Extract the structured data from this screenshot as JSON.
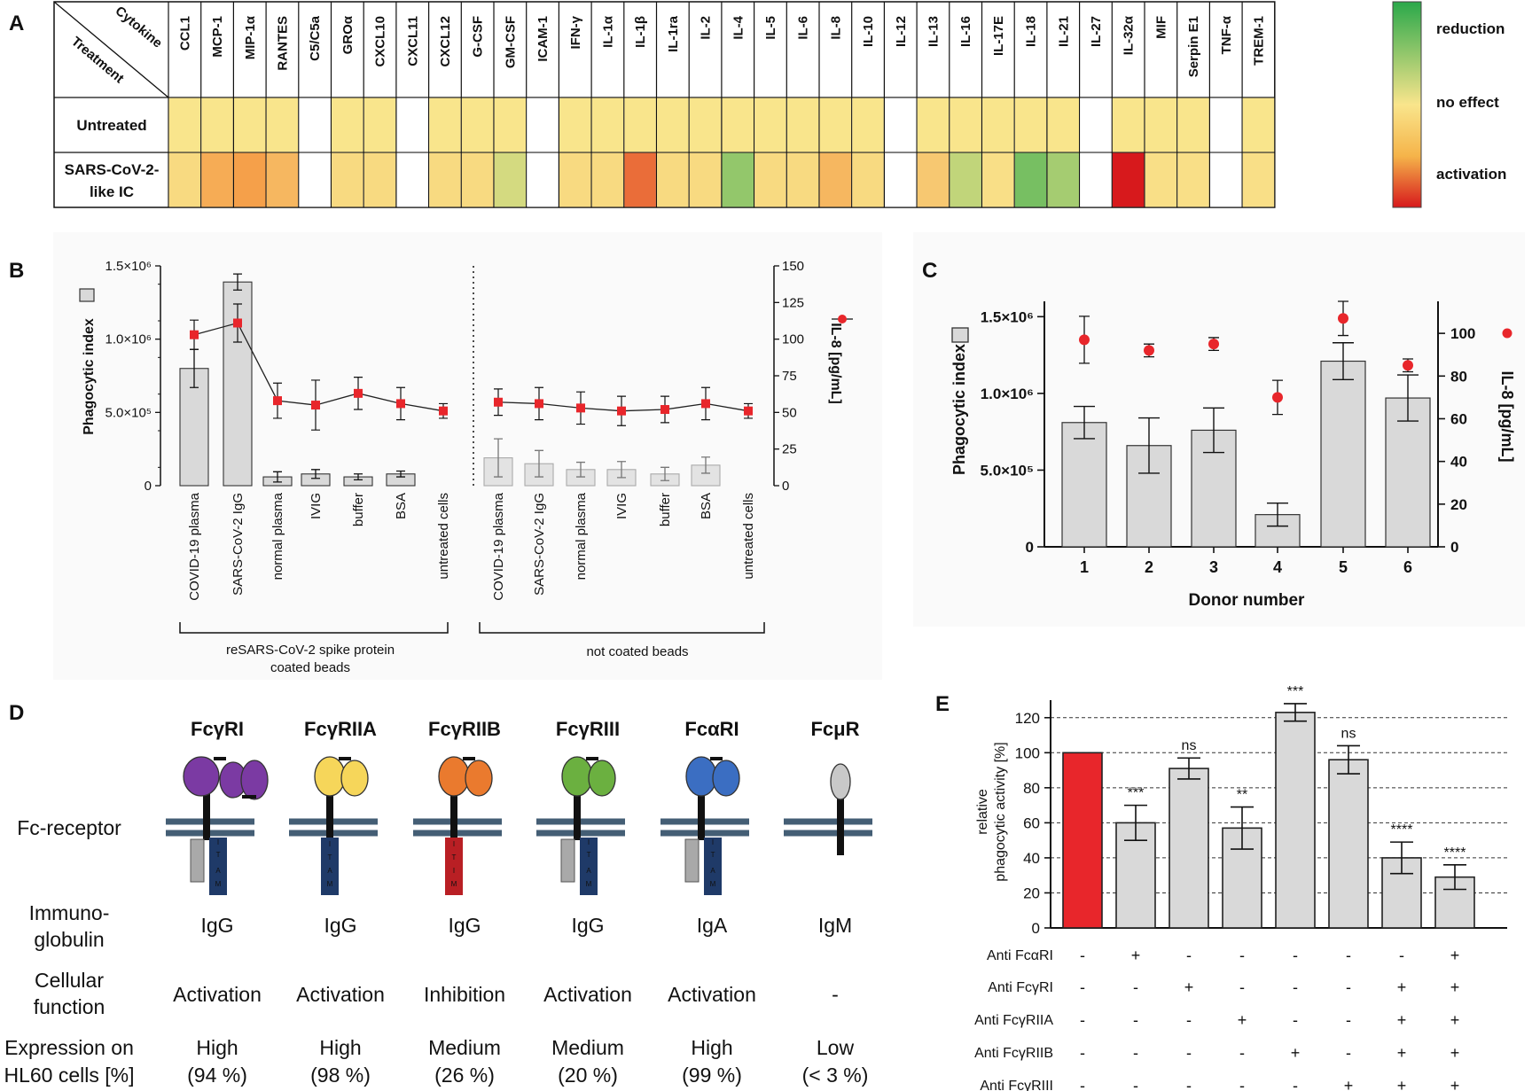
{
  "panel_labels": {
    "a": "A",
    "b": "B",
    "c": "C",
    "d": "D",
    "e": "E"
  },
  "chart_data": [
    {
      "panel": "A",
      "type": "heatmap",
      "header": {
        "col_header": "Cytokine",
        "row_header": "Treatment"
      },
      "columns": [
        "CCL1",
        "MCP-1",
        "MIP-1α",
        "RANTES",
        "C5/C5a",
        "GROα",
        "CXCL10",
        "CXCL11",
        "CXCL12",
        "G-CSF",
        "GM-CSF",
        "ICAM-1",
        "IFN-γ",
        "IL-1α",
        "IL-1β",
        "IL-1ra",
        "IL-2",
        "IL-4",
        "IL-5",
        "IL-6",
        "IL-8",
        "IL-10",
        "IL-12",
        "IL-13",
        "IL-16",
        "IL-17E",
        "IL-18",
        "IL-21",
        "IL-27",
        "IL-32α",
        "MIF",
        "Serpin E1",
        "TNF-α",
        "TREM-1"
      ],
      "rows": [
        {
          "label": "Untreated",
          "values": [
            0,
            0,
            0,
            0,
            null,
            0,
            0,
            null,
            0,
            0,
            0,
            null,
            0,
            0,
            0,
            0,
            0,
            0,
            0,
            0,
            0,
            0,
            null,
            0,
            0,
            0,
            0,
            0,
            null,
            0,
            0,
            0,
            null,
            0
          ]
        },
        {
          "label": "SARS-CoV-2-\nlike IC",
          "values": [
            0.1,
            0.5,
            0.6,
            0.4,
            null,
            0.1,
            0.1,
            null,
            0.1,
            0.1,
            -0.2,
            null,
            0.1,
            0.1,
            0.75,
            0.1,
            0.1,
            -0.55,
            0.1,
            0.1,
            0.4,
            0.1,
            null,
            0.25,
            -0.3,
            0.05,
            -0.7,
            -0.45,
            null,
            1,
            0.05,
            0.05,
            null,
            0.05
          ]
        }
      ],
      "scale": {
        "min": -1,
        "max": 1,
        "colors": [
          "#2aa84a",
          "#f9e58c",
          "#d7191c"
        ]
      },
      "legend": {
        "top": "reduction",
        "middle": "no effect",
        "bottom": "activation"
      }
    },
    {
      "panel": "B",
      "type": "bar",
      "categories": [
        "COVID-19 plasma",
        "SARS-CoV-2 IgG",
        "normal plasma",
        "IVIG",
        "buffer",
        "BSA",
        "untreated cells",
        "COVID-19 plasma",
        "SARS-CoV-2 IgG",
        "normal plasma",
        "IVIG",
        "buffer",
        "BSA",
        "untreated cells"
      ],
      "series": [
        {
          "name": "Phagocytic index",
          "axis": "left",
          "values": [
            800000,
            1390000,
            60000,
            80000,
            60000,
            80000,
            0,
            190000,
            150000,
            110000,
            110000,
            80000,
            140000,
            0
          ],
          "errors": [
            130000,
            55000,
            35000,
            30000,
            20000,
            20000,
            0,
            130000,
            90000,
            50000,
            55000,
            45000,
            55000,
            0
          ]
        },
        {
          "name": "IL-8 [pg/mL]",
          "axis": "right",
          "values": [
            103,
            111,
            58,
            55,
            63,
            56,
            51,
            57,
            56,
            53,
            51,
            52,
            56,
            51
          ],
          "errors": [
            10,
            13,
            12,
            17,
            11,
            11,
            5,
            9,
            11,
            11,
            10,
            9,
            11,
            5
          ]
        }
      ],
      "ylabel": "Phagocytic index",
      "ylabel_right": "IL-8 [pg/mL]",
      "ylim": [
        0,
        1500000
      ],
      "ylim_right": [
        0,
        150
      ],
      "yticks_left": [
        "0",
        "5.0×10⁵",
        "1.0×10⁶",
        "1.5×10⁶"
      ],
      "yticks_right": [
        "0",
        "25",
        "50",
        "75",
        "100",
        "125",
        "150"
      ],
      "groups": [
        {
          "label_line1": "reSARS-CoV-2 spike protein",
          "label_line2": "coated beads"
        },
        {
          "label_line1": "not coated beads",
          "label_line2": ""
        }
      ]
    },
    {
      "panel": "C",
      "type": "bar",
      "categories": [
        "1",
        "2",
        "3",
        "4",
        "5",
        "6"
      ],
      "series": [
        {
          "name": "Phagocytic index",
          "axis": "left",
          "values": [
            810000,
            660000,
            760000,
            210000,
            1210000,
            970000
          ],
          "errors": [
            105000,
            180000,
            145000,
            75000,
            120000,
            150000
          ]
        },
        {
          "name": "IL-8 [pg/mL]",
          "axis": "right",
          "values": [
            97,
            92,
            95,
            70,
            107,
            85
          ],
          "errors": [
            11,
            3,
            3,
            8,
            8,
            3
          ]
        }
      ],
      "xlabel": "Donor number",
      "ylabel": "Phagocytic index",
      "ylabel_right": "IL-8 [pg/mL]",
      "ylim": [
        0,
        1600000
      ],
      "ylim_right": [
        0,
        115
      ],
      "yticks_left": [
        "0",
        "5.0×10⁵",
        "1.0×10⁶",
        "1.5×10⁶"
      ],
      "yticks_right": [
        "0",
        "20",
        "40",
        "60",
        "80",
        "100"
      ]
    },
    {
      "panel": "E",
      "type": "bar",
      "categories": [
        "1",
        "2",
        "3",
        "4",
        "5",
        "6",
        "7",
        "8"
      ],
      "values": [
        100,
        60,
        91,
        57,
        123,
        96,
        40,
        29
      ],
      "errors": [
        0,
        10,
        6,
        12,
        5,
        8,
        9,
        7
      ],
      "significance": [
        "",
        "***",
        "ns",
        "**",
        "***",
        "ns",
        "****",
        "****"
      ],
      "colors": [
        "#e8262b",
        "#d9d9d9",
        "#d9d9d9",
        "#d9d9d9",
        "#d9d9d9",
        "#d9d9d9",
        "#d9d9d9",
        "#d9d9d9"
      ],
      "ylabel_line1": "relative",
      "ylabel_line2": "phagocytic activity [%]",
      "ylim": [
        0,
        130
      ],
      "yticks": [
        "0",
        "20",
        "40",
        "60",
        "80",
        "100",
        "120"
      ],
      "treatments": [
        {
          "label": "Anti FcαRI",
          "marks": [
            "-",
            "+",
            "-",
            "-",
            "-",
            "-",
            "-",
            "+"
          ]
        },
        {
          "label": "Anti FcγRI",
          "marks": [
            "-",
            "-",
            "+",
            "-",
            "-",
            "-",
            "+",
            "+"
          ]
        },
        {
          "label": "Anti FcγRIIA",
          "marks": [
            "-",
            "-",
            "-",
            "+",
            "-",
            "-",
            "+",
            "+"
          ]
        },
        {
          "label": "Anti FcγRIIB",
          "marks": [
            "-",
            "-",
            "-",
            "-",
            "+",
            "-",
            "+",
            "+"
          ]
        },
        {
          "label": "Anti FcγRIII",
          "marks": [
            "-",
            "-",
            "-",
            "-",
            "-",
            "+",
            "+",
            "+"
          ]
        }
      ]
    }
  ],
  "panel_d": {
    "row_labels": {
      "fc_receptor": "Fc-receptor",
      "immuno_line1": "Immuno-",
      "immuno_line2": "globulin",
      "function_line1": "Cellular",
      "function_line2": "function",
      "expression_line1": "Expression on",
      "expression_line2": "HL60 cells [%]"
    },
    "receptors": [
      {
        "name": "FcγRI",
        "color": "#7b3aa3",
        "ig": "IgG",
        "function": "Activation",
        "level": "High",
        "percent": "(94 %)",
        "motif": "ITAM",
        "motif_color": "#1f3a68"
      },
      {
        "name": "FcγRIIA",
        "color": "#f6d65a",
        "ig": "IgG",
        "function": "Activation",
        "level": "High",
        "percent": "(98 %)",
        "motif": "ITAM",
        "motif_color": "#1f3a68"
      },
      {
        "name": "FcγRIIB",
        "color": "#ea7a2e",
        "ig": "IgG",
        "function": "Inhibition",
        "level": "Medium",
        "percent": "(26 %)",
        "motif": "ITIM",
        "motif_color": "#b91f24"
      },
      {
        "name": "FcγRIII",
        "color": "#6bb040",
        "ig": "IgG",
        "function": "Activation",
        "level": "Medium",
        "percent": "(20 %)",
        "motif": "ITAM",
        "motif_color": "#1f3a68"
      },
      {
        "name": "FcαRI",
        "color": "#3b6ec2",
        "ig": "IgA",
        "function": "Activation",
        "level": "High",
        "percent": "(99 %)",
        "motif": "ITAM",
        "motif_color": "#1f3a68"
      },
      {
        "name": "FcμR",
        "color": "#c8c8c8",
        "ig": "IgM",
        "function": "-",
        "level": "Low",
        "percent": "(< 3 %)",
        "motif": "",
        "motif_color": ""
      }
    ]
  }
}
